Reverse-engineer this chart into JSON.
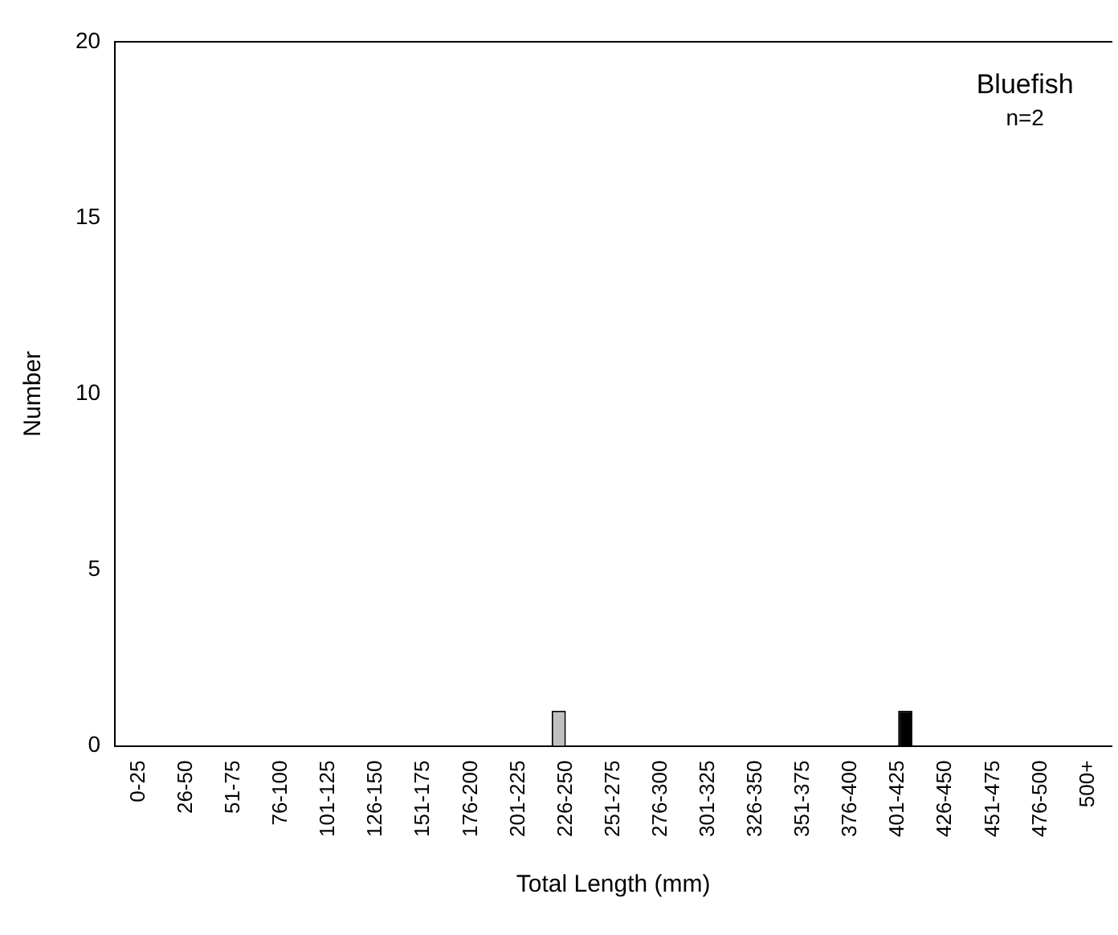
{
  "chart_data": {
    "type": "bar",
    "xlabel": "Total Length (mm)",
    "ylabel": "Number",
    "categories": [
      "0-25",
      "26-50",
      "51-75",
      "76-100",
      "101-125",
      "126-150",
      "151-175",
      "176-200",
      "201-225",
      "226-250",
      "251-275",
      "276-300",
      "301-325",
      "326-350",
      "351-375",
      "376-400",
      "401-425",
      "426-450",
      "451-475",
      "476-500",
      "500+"
    ],
    "series": [
      {
        "color": "#c0c0c0",
        "values": [
          0,
          0,
          0,
          0,
          0,
          0,
          0,
          0,
          0,
          1,
          0,
          0,
          0,
          0,
          0,
          0,
          0,
          0,
          0,
          0,
          0
        ]
      },
      {
        "color": "#000000",
        "values": [
          0,
          0,
          0,
          0,
          0,
          0,
          0,
          0,
          0,
          0,
          0,
          0,
          0,
          0,
          0,
          0,
          1,
          0,
          0,
          0,
          0
        ]
      }
    ],
    "ylim": [
      0,
      20
    ],
    "yticks": [
      0,
      5,
      10,
      15,
      20
    ],
    "grid": false,
    "legend": false,
    "annotations": [
      "Bluefish",
      "n=2"
    ]
  }
}
